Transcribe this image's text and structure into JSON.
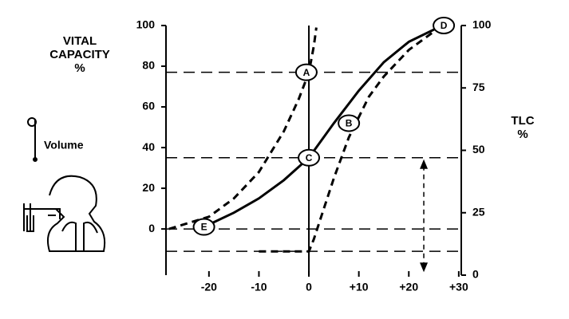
{
  "chart_data": {
    "type": "line",
    "ylabel_lines": [
      "VITAL",
      "CAPACITY",
      "%"
    ],
    "y2label_lines": [
      "TLC",
      "%"
    ],
    "inset_label": "Volume",
    "xlim": [
      -28.6,
      30.5
    ],
    "ylim": [
      -22.7,
      100
    ],
    "y2lim": [
      0,
      100
    ],
    "xticks": [
      -20,
      -10,
      0,
      {
        "value": 10,
        "label": "+10"
      },
      {
        "value": 20,
        "label": "+20"
      },
      {
        "value": 30,
        "label": "+30"
      }
    ],
    "yticks": [
      0,
      20,
      40,
      60,
      80,
      100
    ],
    "y2ticks": [
      0,
      25,
      50,
      75,
      100
    ],
    "series": [
      {
        "color": "#000",
        "dashed": false,
        "x": [
          -21,
          -15,
          -10,
          -5,
          0,
          5,
          10,
          15,
          20,
          25,
          28
        ],
        "values": [
          1,
          8,
          15,
          24,
          35,
          52,
          68,
          82,
          92,
          98,
          100
        ]
      },
      {
        "color": "#000",
        "dashed": true,
        "x": [
          -28,
          -20,
          -15,
          -10,
          -5,
          -2,
          0,
          1,
          1.5
        ],
        "values": [
          0,
          6,
          15,
          28,
          48,
          64,
          77,
          90,
          99
        ]
      },
      {
        "color": "#000",
        "dashed": true,
        "x": [
          -10,
          0,
          1,
          3,
          5,
          8,
          12,
          15,
          20,
          25,
          28
        ],
        "values": [
          -11,
          -11,
          -5,
          10,
          25,
          45,
          65,
          75,
          88,
          97,
          100
        ]
      }
    ],
    "points": [
      {
        "label": "A",
        "x": -0.5,
        "y": 77
      },
      {
        "label": "B",
        "x": 8,
        "y": 52
      },
      {
        "label": "C",
        "x": 0,
        "y": 35
      },
      {
        "label": "D",
        "x": 27,
        "y": 100
      },
      {
        "label": "E",
        "x": -21,
        "y": 1
      }
    ],
    "hlines": [
      77,
      35,
      0,
      -11
    ],
    "arrow": {
      "x": 23,
      "from": 35,
      "to": -22
    }
  }
}
